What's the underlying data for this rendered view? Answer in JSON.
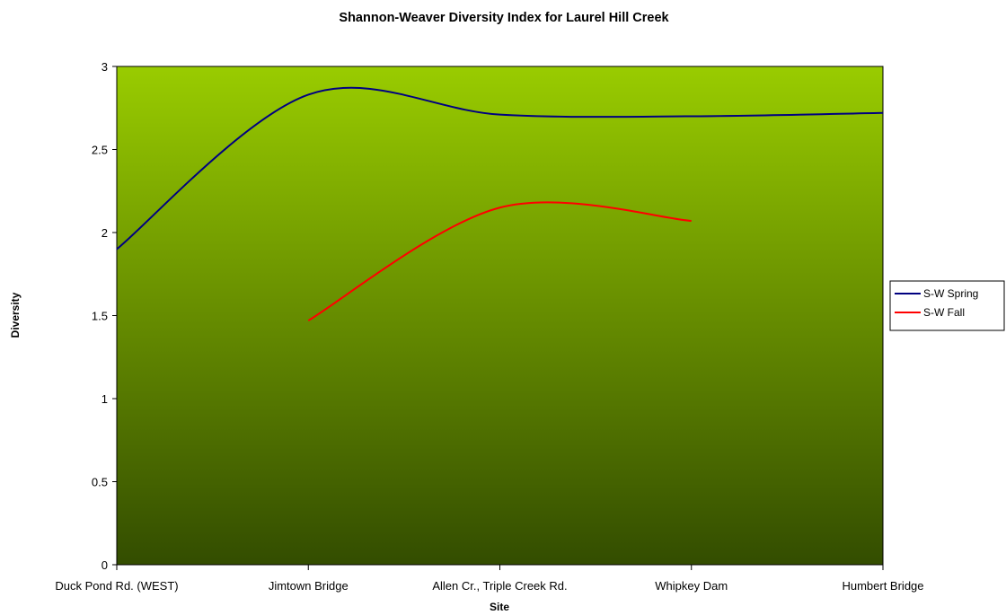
{
  "chart_data": {
    "type": "line",
    "title": "Shannon-Weaver Diversity Index for Laurel Hill Creek",
    "xlabel": "Site",
    "ylabel": "Diversity",
    "categories": [
      "Duck Pond Rd. (WEST)",
      "Jimtown Bridge",
      "Allen Cr., Triple Creek Rd.",
      "Whipkey Dam",
      "Humbert Bridge"
    ],
    "ylim": [
      0,
      3
    ],
    "yticks": [
      "0",
      "0.5",
      "1",
      "1.5",
      "2",
      "2.5",
      "3"
    ],
    "series": [
      {
        "name": "S-W Spring",
        "values": [
          1.9,
          2.83,
          2.71,
          2.7,
          2.72
        ],
        "color": "#000080"
      },
      {
        "name": "S-W Fall",
        "values": [
          null,
          1.47,
          2.15,
          2.07,
          null
        ],
        "color": "#ff0000"
      }
    ],
    "smoothed": true,
    "grid": false,
    "legend_position": "right",
    "plot_background": {
      "top": "#99cc00",
      "bottom": "#334d00"
    }
  }
}
